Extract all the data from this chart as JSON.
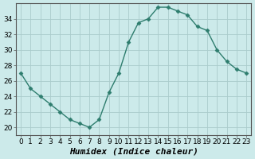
{
  "x": [
    0,
    1,
    2,
    3,
    4,
    5,
    6,
    7,
    8,
    9,
    10,
    11,
    12,
    13,
    14,
    15,
    16,
    17,
    18,
    19,
    20,
    21,
    22,
    23
  ],
  "y": [
    27,
    25,
    24,
    23,
    22,
    21,
    20.5,
    20,
    21,
    24.5,
    27,
    31,
    33.5,
    34,
    35.5,
    35.5,
    35,
    34.5,
    33,
    32.5,
    30,
    28.5,
    27.5,
    27
  ],
  "line_color": "#2e7d6e",
  "marker": "D",
  "marker_size": 2.5,
  "bg_color": "#cceaea",
  "grid_color": "#aacccc",
  "xlabel": "Humidex (Indice chaleur)",
  "ylim": [
    19,
    36
  ],
  "xlim": [
    -0.5,
    23.5
  ],
  "yticks": [
    20,
    22,
    24,
    26,
    28,
    30,
    32,
    34
  ],
  "xticks": [
    0,
    1,
    2,
    3,
    4,
    5,
    6,
    7,
    8,
    9,
    10,
    11,
    12,
    13,
    14,
    15,
    16,
    17,
    18,
    19,
    20,
    21,
    22,
    23
  ],
  "tick_fontsize": 6.5,
  "xlabel_fontsize": 8,
  "spine_color": "#555555"
}
